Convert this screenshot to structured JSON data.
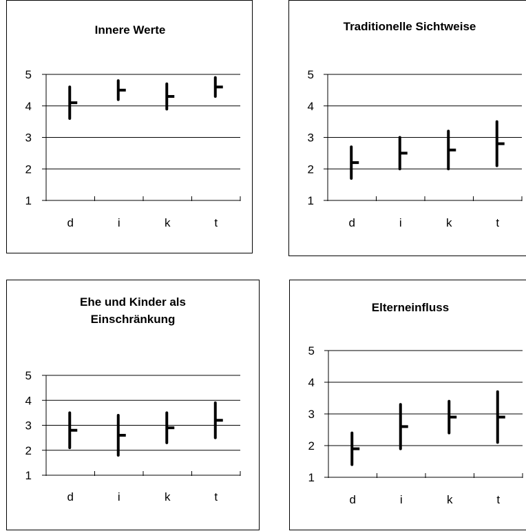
{
  "chart_data": [
    {
      "type": "hi-lo-mean",
      "title": [
        "Innere Werte"
      ],
      "categories": [
        "d",
        "i",
        "k",
        "t"
      ],
      "series": [
        {
          "category": "d",
          "low": 3.6,
          "high": 4.6,
          "mean": 4.1
        },
        {
          "category": "i",
          "low": 4.2,
          "high": 4.8,
          "mean": 4.5
        },
        {
          "category": "k",
          "low": 3.9,
          "high": 4.7,
          "mean": 4.3
        },
        {
          "category": "t",
          "low": 4.3,
          "high": 4.9,
          "mean": 4.6
        }
      ],
      "y_ticks": [
        "1",
        "2",
        "3",
        "4",
        "5"
      ],
      "ylim": [
        1,
        5
      ],
      "grid": true
    },
    {
      "type": "hi-lo-mean",
      "title": [
        "Traditionelle Sichtweise"
      ],
      "categories": [
        "d",
        "i",
        "k",
        "t"
      ],
      "series": [
        {
          "category": "d",
          "low": 1.7,
          "high": 2.7,
          "mean": 2.2
        },
        {
          "category": "i",
          "low": 2.0,
          "high": 3.0,
          "mean": 2.5
        },
        {
          "category": "k",
          "low": 2.0,
          "high": 3.2,
          "mean": 2.6
        },
        {
          "category": "t",
          "low": 2.1,
          "high": 3.5,
          "mean": 2.8
        }
      ],
      "y_ticks": [
        "1",
        "2",
        "3",
        "4",
        "5"
      ],
      "ylim": [
        1,
        5
      ],
      "grid": true
    },
    {
      "type": "hi-lo-mean",
      "title": [
        "Ehe und Kinder als",
        "Einschränkung"
      ],
      "categories": [
        "d",
        "i",
        "k",
        "t"
      ],
      "series": [
        {
          "category": "d",
          "low": 2.1,
          "high": 3.5,
          "mean": 2.8
        },
        {
          "category": "i",
          "low": 1.8,
          "high": 3.4,
          "mean": 2.6
        },
        {
          "category": "k",
          "low": 2.3,
          "high": 3.5,
          "mean": 2.9
        },
        {
          "category": "t",
          "low": 2.5,
          "high": 3.9,
          "mean": 3.2
        }
      ],
      "y_ticks": [
        "1",
        "2",
        "3",
        "4",
        "5"
      ],
      "ylim": [
        1,
        5
      ],
      "grid": true
    },
    {
      "type": "hi-lo-mean",
      "title": [
        "Elterneinfluss"
      ],
      "categories": [
        "d",
        "i",
        "k",
        "t"
      ],
      "series": [
        {
          "category": "d",
          "low": 1.4,
          "high": 2.4,
          "mean": 1.9
        },
        {
          "category": "i",
          "low": 1.9,
          "high": 3.3,
          "mean": 2.6
        },
        {
          "category": "k",
          "low": 2.4,
          "high": 3.4,
          "mean": 2.9
        },
        {
          "category": "t",
          "low": 2.1,
          "high": 3.7,
          "mean": 2.9
        }
      ],
      "y_ticks": [
        "1",
        "2",
        "3",
        "4",
        "5"
      ],
      "ylim": [
        1,
        5
      ],
      "grid": true
    }
  ]
}
